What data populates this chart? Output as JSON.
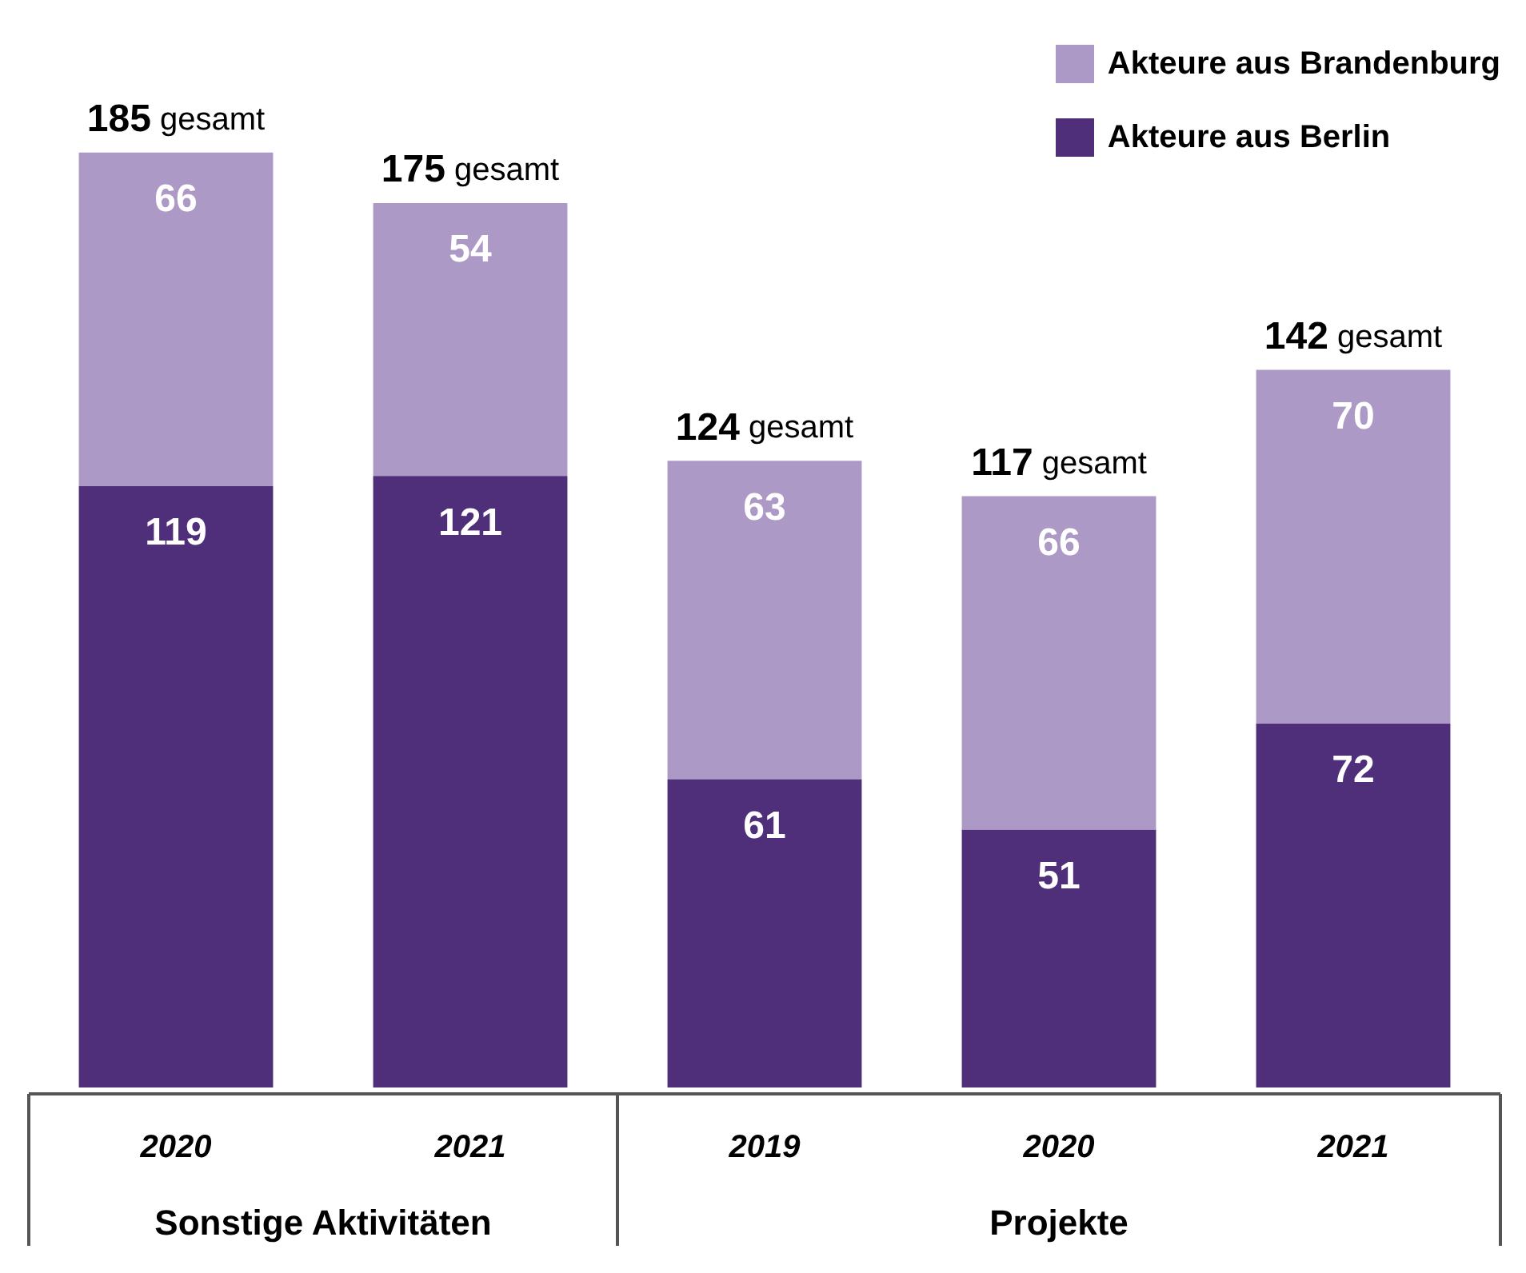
{
  "chart_data": {
    "type": "bar",
    "stacked": true,
    "data_labels": true,
    "legend": "top right",
    "categories": [
      "2020",
      "2021",
      "2019",
      "2020",
      "2021"
    ],
    "series": [
      {
        "name": "Akteure aus Berlin",
        "color": "#4f2f7a",
        "values": [
          119,
          121,
          61,
          51,
          72
        ]
      },
      {
        "name": "Akteure aus Brandenburg",
        "color": "#ac99c6",
        "values": [
          66,
          54,
          63,
          66,
          70
        ]
      }
    ],
    "totals": [
      "185 gesamt",
      "175 gesamt",
      "124 gesamt",
      "117 gesamt",
      "142 gesamt"
    ],
    "annotations": [
      "Sonstige Aktivitäten",
      "Projekte"
    ]
  }
}
